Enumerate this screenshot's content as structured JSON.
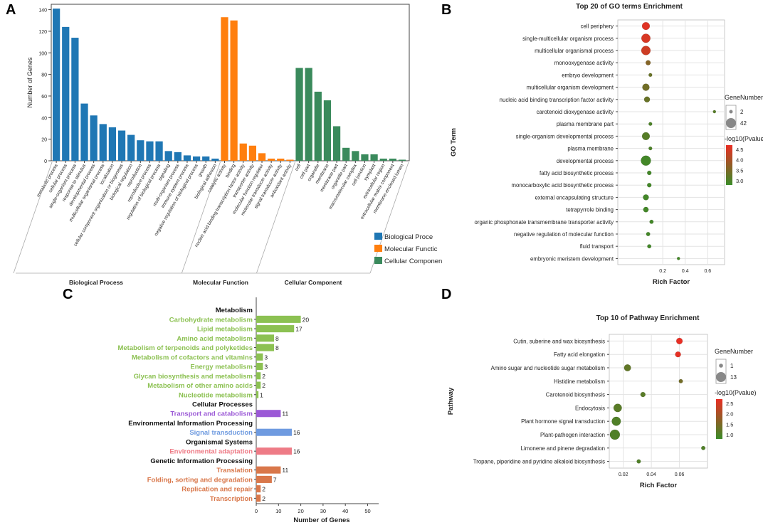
{
  "panels": {
    "a": "A",
    "b": "B",
    "c": "C",
    "d": "D"
  },
  "chart_data": [
    {
      "type": "bar",
      "title": "",
      "ylabel": "Number of Genes",
      "ylim": [
        0,
        145
      ],
      "yticks": [
        0,
        20,
        40,
        60,
        80,
        100,
        120,
        140
      ],
      "groups": [
        {
          "name": "Biological Process",
          "legend": "Biological Proce",
          "color": "#1f77b4",
          "categories": [
            "metabolic process",
            "cellular process",
            "single-organism process",
            "response to stimulus",
            "developmental process",
            "multicellular organismal process",
            "localization",
            "cellular component organization or biogenesis",
            "biological regulation",
            "reproduction",
            "reproductive process",
            "regulation of biological process",
            "signaling",
            "multi-organism process",
            "immune system process",
            "negative regulation of biological process",
            "growth",
            "biological adhesion"
          ],
          "values": [
            141,
            124,
            114,
            53,
            42,
            34,
            31,
            28,
            24,
            19,
            18,
            18,
            9,
            8,
            5,
            4,
            4,
            2
          ]
        },
        {
          "name": "Molecular Function",
          "legend": "Molecular Functic",
          "color": "#ff7f0e",
          "categories": [
            "catalytic activity",
            "binding",
            "nucleic acid binding transcription factor activity",
            "transporter activity",
            "molecular function regulator",
            "molecular transducer activity",
            "signal transducer activity",
            "antioxidant activity"
          ],
          "values": [
            133,
            130,
            16,
            14,
            7,
            2,
            2,
            1
          ]
        },
        {
          "name": "Cellular Component",
          "legend": "Cellular Componen",
          "color": "#3a8a5c",
          "categories": [
            "cell",
            "cell part",
            "organelle",
            "membrane",
            "membrane part",
            "organelle part",
            "macromolecular complex",
            "cell junction",
            "symplast",
            "extracellular region",
            "extracellular matrix component",
            "membrane-enclosed lumen"
          ],
          "values": [
            86,
            86,
            64,
            56,
            32,
            12,
            9,
            6,
            6,
            2,
            2,
            1
          ]
        }
      ]
    },
    {
      "type": "scatter",
      "title": "Top 20 of GO terms Enrichment",
      "xlabel": "Rich Factor",
      "ylabel": "GO Term",
      "xlim": [
        -0.2,
        0.75
      ],
      "xticks": [
        0.2,
        0.4,
        0.6
      ],
      "xtick_labels": [
        "0.2",
        "0.4",
        "0.6"
      ],
      "terms": [
        "cell periphery",
        "single-multicellular organism process",
        "multicellular organismal process",
        "monooxygenase activity",
        "embryo development",
        "multicellular organism development",
        "nucleic acid binding transcription factor activity",
        "carotenoid dioxygenase activity",
        "plasma membrane part",
        "single-organism developmental process",
        "plasma membrane",
        "developmental process",
        "fatty acid biosynthetic process",
        "monocarboxylic acid biosynthetic process",
        "external encapsulating structure",
        "tetrapyrrole binding",
        "organic phosphonate transmembrane transporter activity",
        "negative regulation of molecular function",
        "fluid transport",
        "embryonic meristem development"
      ],
      "rich_factor": [
        0.05,
        0.05,
        0.05,
        0.07,
        0.09,
        0.05,
        0.06,
        0.66,
        0.09,
        0.05,
        0.09,
        0.05,
        0.08,
        0.08,
        0.05,
        0.05,
        0.1,
        0.07,
        0.08,
        0.34
      ],
      "gene_number": [
        22,
        32,
        34,
        6,
        2,
        18,
        10,
        1,
        2,
        22,
        2,
        42,
        4,
        4,
        10,
        8,
        3,
        3,
        3,
        1
      ],
      "neg_log10_p": [
        4.6,
        4.5,
        4.4,
        3.6,
        3.3,
        3.4,
        3.3,
        3.1,
        3.0,
        3.1,
        3.0,
        2.9,
        2.9,
        2.9,
        2.9,
        2.9,
        2.9,
        2.9,
        2.9,
        2.9
      ],
      "size_legend_title": "GeneNumber",
      "size_legend": [
        {
          "label": "2",
          "value": 2
        },
        {
          "label": "42",
          "value": 42
        }
      ],
      "color_legend_title": "-log10(Pvalue)",
      "color_legend_ticks": [
        "4.5",
        "4.0",
        "3.5",
        "3.0"
      ]
    },
    {
      "type": "bar",
      "orientation": "horizontal",
      "xlabel": "Number of Genes",
      "xlim": [
        0,
        55
      ],
      "xticks": [
        0,
        10,
        20,
        30,
        40,
        50
      ],
      "rows": [
        {
          "label": "Metabolism",
          "header": true,
          "color": "#111111"
        },
        {
          "label": "Carbohydrate metabolism",
          "value": 20,
          "color": "#8cc152"
        },
        {
          "label": "Lipid metabolism",
          "value": 17,
          "color": "#8cc152"
        },
        {
          "label": "Amino acid metabolism",
          "value": 8,
          "color": "#8cc152"
        },
        {
          "label": "Metabolism of terpenoids and polyketides",
          "value": 8,
          "color": "#8cc152"
        },
        {
          "label": "Metabolism of cofactors and vitamins",
          "value": 3,
          "color": "#8cc152"
        },
        {
          "label": "Energy metabolism",
          "value": 3,
          "color": "#8cc152"
        },
        {
          "label": "Glycan biosynthesis and metabolism",
          "value": 2,
          "color": "#8cc152"
        },
        {
          "label": "Metabolism of other amino acids",
          "value": 2,
          "color": "#8cc152"
        },
        {
          "label": "Nucleotide metabolism",
          "value": 1,
          "color": "#8cc152"
        },
        {
          "label": "Cellular Processes",
          "header": true,
          "color": "#111111"
        },
        {
          "label": "Transport and catabolism",
          "value": 11,
          "color": "#9b59d6"
        },
        {
          "label": "Environmental Information Processing",
          "header": true,
          "color": "#111111"
        },
        {
          "label": "Signal transduction",
          "value": 16,
          "color": "#6f9be0"
        },
        {
          "label": "Organismal Systems",
          "header": true,
          "color": "#111111"
        },
        {
          "label": "Environmental adaptation",
          "value": 16,
          "color": "#ee7b86"
        },
        {
          "label": "Genetic Information Processing",
          "header": true,
          "color": "#111111"
        },
        {
          "label": "Translation",
          "value": 11,
          "color": "#d9774a"
        },
        {
          "label": "Folding, sorting and degradation",
          "value": 7,
          "color": "#d9774a"
        },
        {
          "label": "Replication and repair",
          "value": 2,
          "color": "#d9774a"
        },
        {
          "label": "Transcription",
          "value": 2,
          "color": "#d9774a"
        }
      ]
    },
    {
      "type": "scatter",
      "title": "Top 10 of Pathway Enrichment",
      "xlabel": "Rich Factor",
      "ylabel": "Pathway",
      "xlim": [
        0.01,
        0.08
      ],
      "xticks": [
        0.02,
        0.04,
        0.06
      ],
      "xtick_labels": [
        "0.02",
        "0.04",
        "0.06"
      ],
      "terms": [
        "Cutin, suberine and wax biosynthesis",
        "Fatty acid elongation",
        "Amino sugar and nucleotide sugar metabolism",
        "Histidine metabolism",
        "Carotenoid biosynthesis",
        "Endocytosis",
        "Plant hormone signal transduction",
        "Plant-pathogen interaction",
        "Limonene and pinene degradation",
        "Tropane, piperidine and pyridine alkaloid biosynthesis"
      ],
      "rich_factor": [
        0.06,
        0.059,
        0.023,
        0.061,
        0.034,
        0.016,
        0.015,
        0.014,
        0.077,
        0.031
      ],
      "gene_number": [
        4,
        3,
        5,
        1,
        2,
        8,
        10,
        13,
        1,
        1
      ],
      "neg_log10_p": [
        2.9,
        2.7,
        1.2,
        1.4,
        1.1,
        1.1,
        1.0,
        1.0,
        1.0,
        1.0
      ],
      "size_legend_title": "GeneNumber",
      "size_legend": [
        {
          "label": "1",
          "value": 1
        },
        {
          "label": "13",
          "value": 13
        }
      ],
      "color_legend_title": "-log10(Pvalue)",
      "color_legend_ticks": [
        "2.5",
        "2.0",
        "1.5",
        "1.0"
      ]
    }
  ]
}
